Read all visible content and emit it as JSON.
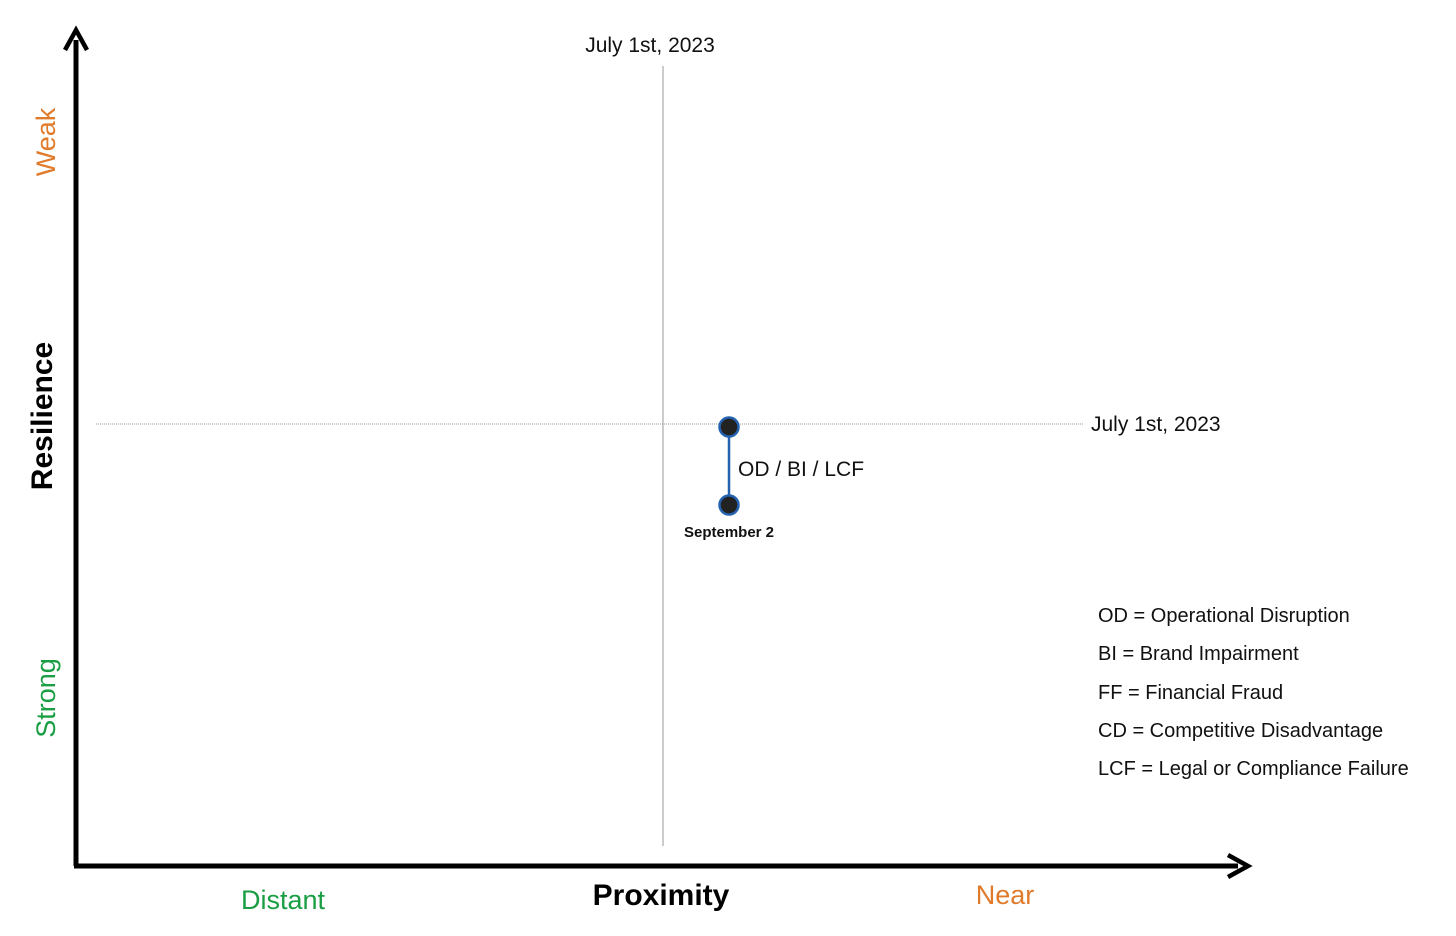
{
  "colors": {
    "weak_near": "#e07b2c",
    "strong_distant": "#1a9e44",
    "connector": "#2462b0",
    "marker_fill": "#222222",
    "grid": "#9a9a9a",
    "axis": "#000000"
  },
  "axes": {
    "y_title": "Resilience",
    "x_title": "Proximity",
    "y_top_label": "Weak",
    "y_bottom_label": "Strong",
    "x_left_label": "Distant",
    "x_right_label": "Near"
  },
  "reference_lines": {
    "vertical_label": "July 1st, 2023",
    "horizontal_label": "July 1st, 2023"
  },
  "movement": {
    "label": "OD / BI / LCF",
    "end_label": "September 2"
  },
  "legend": [
    "OD = Operational Disruption",
    "BI = Brand Impairment",
    "FF = Financial Fraud",
    "CD = Competitive Disadvantage",
    "LCF = Legal or Compliance Failure"
  ]
}
